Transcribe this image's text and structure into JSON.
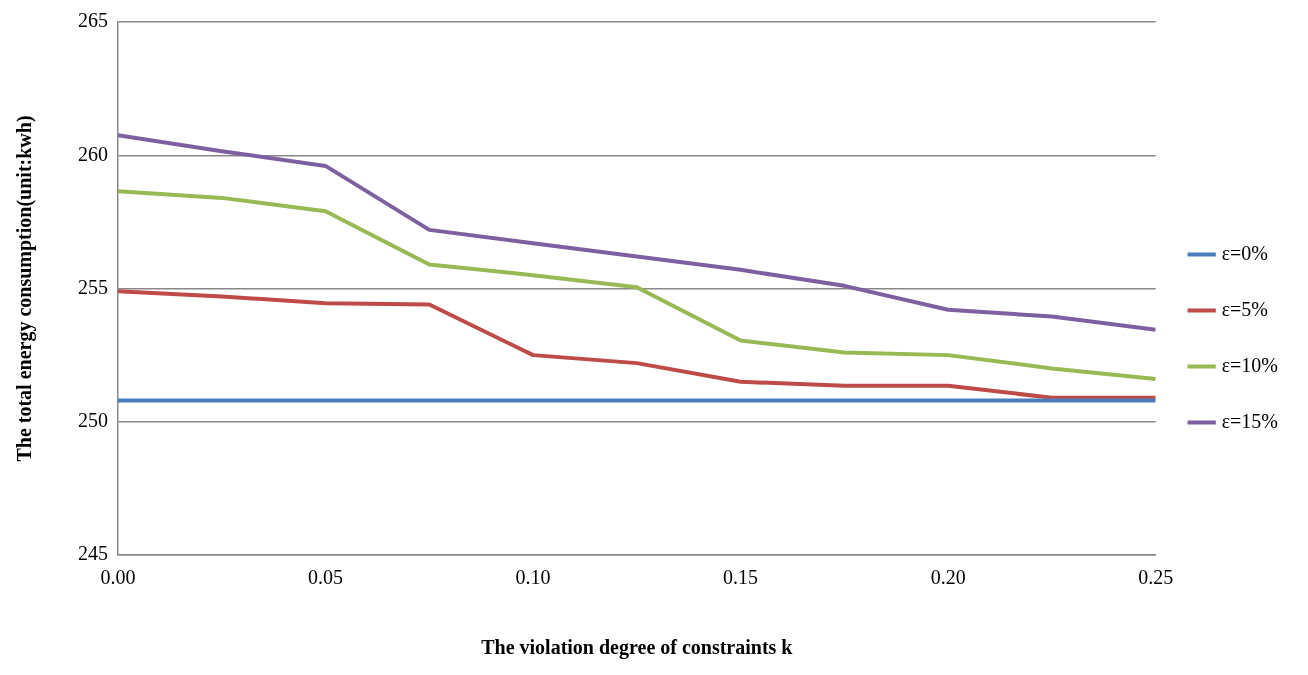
{
  "chart_data": {
    "type": "line",
    "xlabel": "The violation degree of constraints k",
    "ylabel": "The total energy consumption(unit:kwh)",
    "x": [
      0,
      0.025,
      0.05,
      0.075,
      0.1,
      0.125,
      0.15,
      0.175,
      0.2,
      0.225,
      0.25
    ],
    "series": [
      {
        "name": "ε=0%",
        "color": "#4a7ebb",
        "values": [
          250.8,
          250.8,
          250.8,
          250.8,
          250.8,
          250.8,
          250.8,
          250.8,
          250.8,
          250.8,
          250.8
        ]
      },
      {
        "name": "ε=5%",
        "color": "#be4b48",
        "values": [
          254.9,
          254.7,
          254.45,
          254.4,
          252.5,
          252.2,
          251.5,
          251.35,
          251.35,
          250.9,
          250.9
        ]
      },
      {
        "name": "ε=10%",
        "color": "#98b954",
        "values": [
          258.65,
          258.4,
          257.9,
          255.9,
          255.5,
          255.05,
          253.05,
          252.6,
          252.5,
          252.0,
          251.6
        ]
      },
      {
        "name": "ε=15%",
        "color": "#7d60a0",
        "values": [
          260.75,
          260.15,
          259.6,
          257.2,
          256.7,
          256.2,
          255.7,
          255.1,
          254.2,
          253.95,
          253.45
        ]
      }
    ],
    "xlim": [
      0,
      0.25
    ],
    "xticks": [
      {
        "value": 0,
        "label": "0.00"
      },
      {
        "value": 0.05,
        "label": "0.05"
      },
      {
        "value": 0.1,
        "label": "0.10"
      },
      {
        "value": 0.15,
        "label": "0.15"
      },
      {
        "value": 0.2,
        "label": "0.20"
      },
      {
        "value": 0.25,
        "label": "0.25"
      }
    ],
    "ylim": [
      245,
      265
    ],
    "yticks": [
      245,
      250,
      255,
      260,
      265
    ],
    "grid": "y",
    "legend": "right",
    "marker": "none",
    "line_style": "solid"
  }
}
